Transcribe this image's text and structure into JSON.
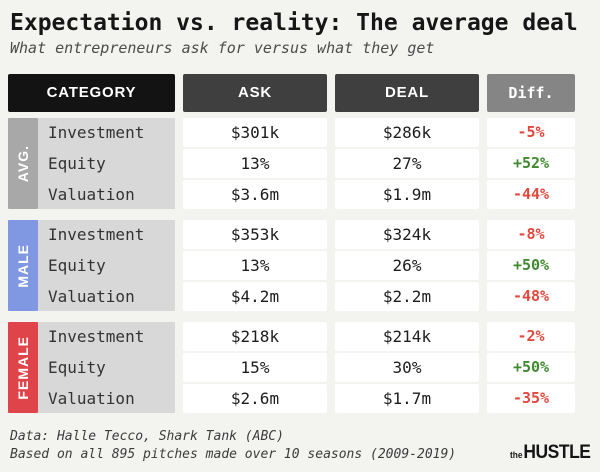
{
  "title": "Expectation vs. reality: The average deal",
  "subtitle": "What entrepreneurs ask for versus what they get",
  "table": {
    "headers": [
      "CATEGORY",
      "ASK",
      "DEAL",
      "Diff."
    ],
    "sections": [
      {
        "group": "AVG.",
        "color": "#a8a8a8",
        "rows": [
          {
            "label": "Investment",
            "ask": "$301k",
            "deal": "$286k",
            "diff": "-5%"
          },
          {
            "label": "Equity",
            "ask": "13%",
            "deal": "27%",
            "diff": "+52%"
          },
          {
            "label": "Valuation",
            "ask": "$3.6m",
            "deal": "$1.9m",
            "diff": "-44%"
          }
        ]
      },
      {
        "group": "MALE",
        "color": "#8097e2",
        "rows": [
          {
            "label": "Investment",
            "ask": "$353k",
            "deal": "$324k",
            "diff": "-8%"
          },
          {
            "label": "Equity",
            "ask": "13%",
            "deal": "26%",
            "diff": "+50%"
          },
          {
            "label": "Valuation",
            "ask": "$4.2m",
            "deal": "$2.2m",
            "diff": "-48%"
          }
        ]
      },
      {
        "group": "FEMALE",
        "color": "#e0444b",
        "rows": [
          {
            "label": "Investment",
            "ask": "$218k",
            "deal": "$214k",
            "diff": "-2%"
          },
          {
            "label": "Equity",
            "ask": "15%",
            "deal": "30%",
            "diff": "+50%"
          },
          {
            "label": "Valuation",
            "ask": "$2.6m",
            "deal": "$1.7m",
            "diff": "-35%"
          }
        ]
      }
    ]
  },
  "footer": {
    "line1": "Data: Halle Tecco, Shark Tank (ABC)",
    "line2": "Based on all 895 pitches made over 10 seasons (2009-2019)",
    "logo_the": "the",
    "logo_hustle": "HUSTLE"
  },
  "colors": {
    "page_background": "#f3f3f0",
    "header_category_bg": "#131313",
    "header_ask_deal_bg": "#3f3f3f",
    "header_diff_bg": "#858585",
    "label_column_bg": "#d8d8d8",
    "cell_bg": "#ffffff",
    "diff_negative": "#e2483d",
    "diff_positive": "#3f8a2f"
  },
  "chart_data": {
    "type": "table",
    "title": "Expectation vs. reality: The average deal",
    "subtitle": "What entrepreneurs ask for versus what they get",
    "columns": [
      "CATEGORY",
      "ASK",
      "DEAL",
      "Diff."
    ],
    "groups": [
      {
        "name": "AVG.",
        "rows": [
          [
            "Investment",
            "$301k",
            "$286k",
            "-5%"
          ],
          [
            "Equity",
            "13%",
            "27%",
            "+52%"
          ],
          [
            "Valuation",
            "$3.6m",
            "$1.9m",
            "-44%"
          ]
        ]
      },
      {
        "name": "MALE",
        "rows": [
          [
            "Investment",
            "$353k",
            "$324k",
            "-8%"
          ],
          [
            "Equity",
            "13%",
            "26%",
            "+50%"
          ],
          [
            "Valuation",
            "$4.2m",
            "$2.2m",
            "-48%"
          ]
        ]
      },
      {
        "name": "FEMALE",
        "rows": [
          [
            "Investment",
            "$218k",
            "$214k",
            "-2%"
          ],
          [
            "Equity",
            "15%",
            "30%",
            "+50%"
          ],
          [
            "Valuation",
            "$2.6m",
            "$1.7m",
            "-35%"
          ]
        ]
      }
    ],
    "source": "Data: Halle Tecco, Shark Tank (ABC)",
    "note": "Based on all 895 pitches made over 10 seasons (2009-2019)"
  }
}
